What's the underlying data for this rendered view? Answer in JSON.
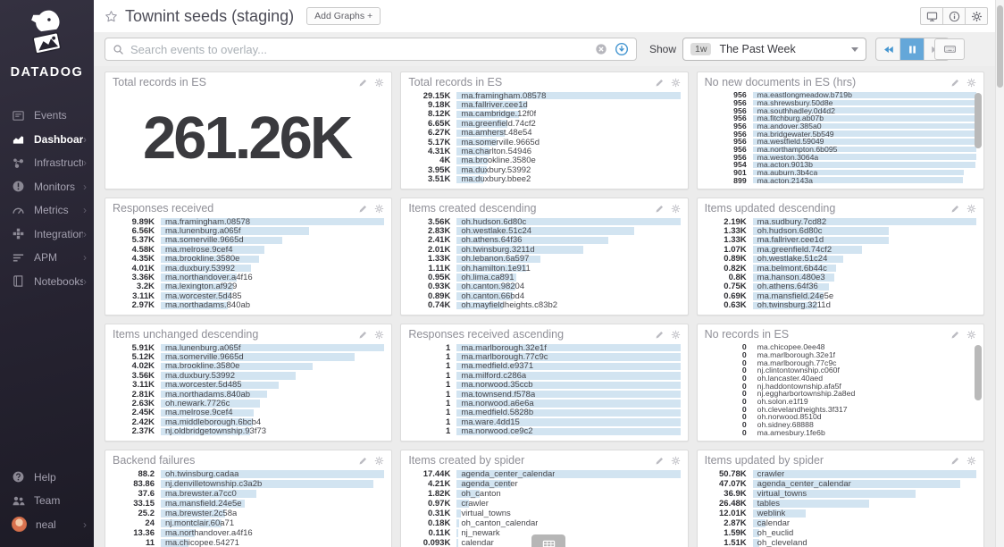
{
  "sidebar": {
    "brand": "DATADOG",
    "items": [
      {
        "label": "Events",
        "icon": "events-icon",
        "active": false,
        "chevron": false
      },
      {
        "label": "Dashboards",
        "icon": "dashboards-icon",
        "active": true,
        "chevron": true
      },
      {
        "label": "Infrastructure",
        "icon": "infrastructure-icon",
        "active": false,
        "chevron": true
      },
      {
        "label": "Monitors",
        "icon": "monitors-icon",
        "active": false,
        "chevron": true
      },
      {
        "label": "Metrics",
        "icon": "metrics-icon",
        "active": false,
        "chevron": true
      },
      {
        "label": "Integrations",
        "icon": "integrations-icon",
        "active": false,
        "chevron": true
      },
      {
        "label": "APM",
        "icon": "apm-icon",
        "active": false,
        "chevron": true
      },
      {
        "label": "Notebooks",
        "icon": "notebooks-icon",
        "active": false,
        "chevron": true
      }
    ],
    "bottom_items": [
      {
        "label": "Help",
        "icon": "help-icon",
        "chevron": false
      },
      {
        "label": "Team",
        "icon": "team-icon",
        "chevron": false
      },
      {
        "label": "neal",
        "icon": "user-avatar",
        "chevron": true
      }
    ]
  },
  "header": {
    "title": "Townint seeds (staging)",
    "add_graphs_label": "Add Graphs +"
  },
  "toolbar": {
    "search_placeholder": "Search events to overlay...",
    "show_label": "Show",
    "timeframe_badge": "1w",
    "timeframe_label": "The Past Week"
  },
  "colors": {
    "accent_blue": "#4596d1",
    "pause_button_bg": "#64a7d9",
    "bar_fill": "#d2e4f1",
    "sidebar_bg": "#262331",
    "avatar_orange": "#d9714e"
  },
  "widgets": [
    {
      "title": "Total records in ES",
      "type": "query_value",
      "value": "261.26K",
      "scrollbar": false,
      "rows": []
    },
    {
      "title": "Total records in ES",
      "type": "toplist",
      "scrollbar": false,
      "rows": [
        {
          "value": "29.15K",
          "label": "ma.framingham.08578"
        },
        {
          "value": "9.18K",
          "label": "ma.fallriver.cee1d"
        },
        {
          "value": "8.12K",
          "label": "ma.cambridge.12f0f"
        },
        {
          "value": "6.65K",
          "label": "ma.greenfield.74cf2"
        },
        {
          "value": "6.27K",
          "label": "ma.amherst.48e54"
        },
        {
          "value": "5.17K",
          "label": "ma.somerville.9665d"
        },
        {
          "value": "4.31K",
          "label": "ma.charlton.54946"
        },
        {
          "value": "4K",
          "label": "ma.brookline.3580e"
        },
        {
          "value": "3.95K",
          "label": "ma.duxbury.53992"
        },
        {
          "value": "3.51K",
          "label": "ma.duxbury.bbee2"
        }
      ]
    },
    {
      "title": "No new documents in ES (hrs)",
      "type": "toplist",
      "scrollbar": true,
      "rows": [
        {
          "value": "956",
          "label": "ma.eastlongmeadow.b719b"
        },
        {
          "value": "956",
          "label": "ma.shrewsbury.50d8e"
        },
        {
          "value": "956",
          "label": "ma.southhadley.0d4d2"
        },
        {
          "value": "956",
          "label": "ma.fitchburg.ab07b"
        },
        {
          "value": "956",
          "label": "ma.andover.385a0"
        },
        {
          "value": "956",
          "label": "ma.bridgewater.5b549"
        },
        {
          "value": "956",
          "label": "ma.westfield.59049"
        },
        {
          "value": "956",
          "label": "ma.northampton.6b095"
        },
        {
          "value": "956",
          "label": "ma.weston.3064a"
        },
        {
          "value": "954",
          "label": "ma.acton.9013b"
        },
        {
          "value": "901",
          "label": "ma.auburn.3b4ca"
        },
        {
          "value": "899",
          "label": "ma.acton.2143a"
        }
      ]
    },
    {
      "title": "Responses received",
      "type": "toplist",
      "scrollbar": false,
      "rows": [
        {
          "value": "9.89K",
          "label": "ma.framingham.08578"
        },
        {
          "value": "6.56K",
          "label": "ma.lunenburg.a065f"
        },
        {
          "value": "5.37K",
          "label": "ma.somerville.9665d"
        },
        {
          "value": "4.58K",
          "label": "ma.melrose.9cef4"
        },
        {
          "value": "4.35K",
          "label": "ma.brookline.3580e"
        },
        {
          "value": "4.01K",
          "label": "ma.duxbury.53992"
        },
        {
          "value": "3.36K",
          "label": "ma.northandover.a4f16"
        },
        {
          "value": "3.2K",
          "label": "ma.lexington.af929"
        },
        {
          "value": "3.11K",
          "label": "ma.worcester.5d485"
        },
        {
          "value": "2.97K",
          "label": "ma.northadams.840ab"
        }
      ]
    },
    {
      "title": "Items created descending",
      "type": "toplist",
      "scrollbar": false,
      "rows": [
        {
          "value": "3.56K",
          "label": "oh.hudson.6d80c"
        },
        {
          "value": "2.83K",
          "label": "oh.westlake.51c24"
        },
        {
          "value": "2.41K",
          "label": "oh.athens.64f36"
        },
        {
          "value": "2.01K",
          "label": "oh.twinsburg.3211d"
        },
        {
          "value": "1.33K",
          "label": "oh.lebanon.6a597"
        },
        {
          "value": "1.11K",
          "label": "oh.hamilton.1e911"
        },
        {
          "value": "0.95K",
          "label": "oh.lima.ca891"
        },
        {
          "value": "0.93K",
          "label": "oh.canton.98204"
        },
        {
          "value": "0.89K",
          "label": "oh.canton.66bd4"
        },
        {
          "value": "0.74K",
          "label": "oh.mayfieldheights.c83b2"
        }
      ]
    },
    {
      "title": "Items updated descending",
      "type": "toplist",
      "scrollbar": false,
      "rows": [
        {
          "value": "2.19K",
          "label": "ma.sudbury.7cd82"
        },
        {
          "value": "1.33K",
          "label": "oh.hudson.6d80c"
        },
        {
          "value": "1.33K",
          "label": "ma.fallriver.cee1d"
        },
        {
          "value": "1.07K",
          "label": "ma.greenfield.74cf2"
        },
        {
          "value": "0.89K",
          "label": "oh.westlake.51c24"
        },
        {
          "value": "0.82K",
          "label": "ma.belmont.6b44c"
        },
        {
          "value": "0.8K",
          "label": "ma.hanson.480e3"
        },
        {
          "value": "0.75K",
          "label": "oh.athens.64f36"
        },
        {
          "value": "0.69K",
          "label": "ma.mansfield.24e5e"
        },
        {
          "value": "0.63K",
          "label": "oh.twinsburg.3211d"
        }
      ]
    },
    {
      "title": "Items unchanged descending",
      "type": "toplist",
      "scrollbar": false,
      "rows": [
        {
          "value": "5.91K",
          "label": "ma.lunenburg.a065f"
        },
        {
          "value": "5.12K",
          "label": "ma.somerville.9665d"
        },
        {
          "value": "4.02K",
          "label": "ma.brookline.3580e"
        },
        {
          "value": "3.56K",
          "label": "ma.duxbury.53992"
        },
        {
          "value": "3.11K",
          "label": "ma.worcester.5d485"
        },
        {
          "value": "2.81K",
          "label": "ma.northadams.840ab"
        },
        {
          "value": "2.63K",
          "label": "oh.newark.7726c"
        },
        {
          "value": "2.45K",
          "label": "ma.melrose.9cef4"
        },
        {
          "value": "2.42K",
          "label": "ma.middleborough.6bcb4"
        },
        {
          "value": "2.37K",
          "label": "nj.oldbridgetownship.93f73"
        }
      ]
    },
    {
      "title": "Responses received ascending",
      "type": "toplist",
      "scrollbar": false,
      "rows": [
        {
          "value": "1",
          "label": "ma.marlborough.32e1f"
        },
        {
          "value": "1",
          "label": "ma.marlborough.77c9c"
        },
        {
          "value": "1",
          "label": "ma.medfield.e9371"
        },
        {
          "value": "1",
          "label": "ma.milford.c286a"
        },
        {
          "value": "1",
          "label": "ma.norwood.35ccb"
        },
        {
          "value": "1",
          "label": "ma.townsend.f578a"
        },
        {
          "value": "1",
          "label": "ma.norwood.a6e6a"
        },
        {
          "value": "1",
          "label": "ma.medfield.5828b"
        },
        {
          "value": "1",
          "label": "ma.ware.4dd15"
        },
        {
          "value": "1",
          "label": "ma.norwood.ce9c2"
        }
      ]
    },
    {
      "title": "No records in ES",
      "type": "toplist",
      "scrollbar": true,
      "rows": [
        {
          "value": "0",
          "label": "ma.chicopee.0ee48"
        },
        {
          "value": "0",
          "label": "ma.marlborough.32e1f"
        },
        {
          "value": "0",
          "label": "ma.marlborough.77c9c"
        },
        {
          "value": "0",
          "label": "nj.clintontownship.c060f"
        },
        {
          "value": "0",
          "label": "oh.lancaster.40aed"
        },
        {
          "value": "0",
          "label": "nj.haddontownship.afa5f"
        },
        {
          "value": "0",
          "label": "nj.eggharbortownship.2a8ed"
        },
        {
          "value": "0",
          "label": "oh.solon.e1f19"
        },
        {
          "value": "0",
          "label": "oh.clevelandheights.3f317"
        },
        {
          "value": "0",
          "label": "oh.norwood.8510d"
        },
        {
          "value": "0",
          "label": "oh.sidney.68888"
        },
        {
          "value": "0",
          "label": "ma.amesbury.1fe6b"
        }
      ]
    },
    {
      "title": "Backend failures",
      "type": "toplist",
      "scrollbar": false,
      "rows": [
        {
          "value": "88.2",
          "label": "oh.twinsburg.cadaa"
        },
        {
          "value": "83.86",
          "label": "nj.denvilletownship.c3a2b"
        },
        {
          "value": "37.6",
          "label": "ma.brewster.a7cc0"
        },
        {
          "value": "33.15",
          "label": "ma.mansfield.24e5e"
        },
        {
          "value": "25.2",
          "label": "ma.brewster.2c58a"
        },
        {
          "value": "24",
          "label": "nj.montclair.60a71"
        },
        {
          "value": "13.36",
          "label": "ma.northandover.a4f16"
        },
        {
          "value": "11",
          "label": "ma.chicopee.54271"
        }
      ]
    },
    {
      "title": "Items created by spider",
      "type": "toplist",
      "scrollbar": false,
      "rows": [
        {
          "value": "17.44K",
          "label": "agenda_center_calendar"
        },
        {
          "value": "4.21K",
          "label": "agenda_center"
        },
        {
          "value": "1.82K",
          "label": "oh_canton"
        },
        {
          "value": "0.97K",
          "label": "crawler"
        },
        {
          "value": "0.31K",
          "label": "virtual_towns"
        },
        {
          "value": "0.18K",
          "label": "oh_canton_calendar"
        },
        {
          "value": "0.11K",
          "label": "nj_newark"
        },
        {
          "value": "0.093K",
          "label": "calendar"
        }
      ]
    },
    {
      "title": "Items updated by spider",
      "type": "toplist",
      "scrollbar": false,
      "rows": [
        {
          "value": "50.78K",
          "label": "crawler"
        },
        {
          "value": "47.07K",
          "label": "agenda_center_calendar"
        },
        {
          "value": "36.9K",
          "label": "virtual_towns"
        },
        {
          "value": "26.48K",
          "label": "tables"
        },
        {
          "value": "12.01K",
          "label": "weblink"
        },
        {
          "value": "2.87K",
          "label": "calendar"
        },
        {
          "value": "1.59K",
          "label": "oh_euclid"
        },
        {
          "value": "1.51K",
          "label": "oh_cleveland"
        }
      ]
    }
  ]
}
